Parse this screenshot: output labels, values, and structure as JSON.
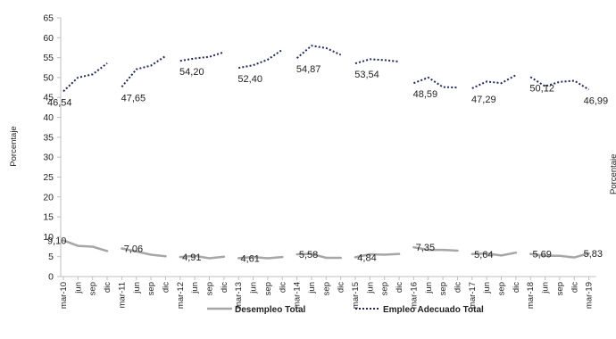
{
  "chart_data": {
    "type": "line",
    "ylabel": "Porcentaje",
    "ylabel_right": "Porcentaje",
    "ylim": [
      0,
      65
    ],
    "yticks": [
      0,
      5,
      10,
      15,
      20,
      25,
      30,
      35,
      40,
      45,
      50,
      55,
      60,
      65
    ],
    "categories": [
      "mar-10",
      "jun",
      "sep",
      "dic",
      "mar-11",
      "jun",
      "sep",
      "dic",
      "mar-12",
      "jun",
      "sep",
      "dic",
      "mar-13",
      "jun",
      "sep",
      "dic",
      "mar-14",
      "jun",
      "sep",
      "dic",
      "mar-15",
      "jun",
      "sep",
      "dic",
      "mar-16",
      "jun",
      "sep",
      "dic",
      "mar-17",
      "jun",
      "sep",
      "dic",
      "mar-18",
      "jun",
      "sep",
      "dic",
      "mar-19"
    ],
    "legend_position": "bottom",
    "series": [
      {
        "name": "Desempleo Total",
        "color": "#a6a6a6",
        "style": "solid",
        "values": [
          9.1,
          7.7,
          7.5,
          6.4,
          7.06,
          6.3,
          5.5,
          5.1,
          4.91,
          5.2,
          4.6,
          5.0,
          4.61,
          4.9,
          4.6,
          4.9,
          5.58,
          5.7,
          4.7,
          4.7,
          4.84,
          5.6,
          5.5,
          5.7,
          7.35,
          6.7,
          6.7,
          6.5,
          5.64,
          5.8,
          5.3,
          6.0,
          5.69,
          5.2,
          5.2,
          4.8,
          5.83
        ],
        "segments": [
          [
            0,
            3
          ],
          [
            4,
            7
          ],
          [
            8,
            11
          ],
          [
            12,
            15
          ],
          [
            16,
            19
          ],
          [
            20,
            23
          ],
          [
            24,
            27
          ],
          [
            28,
            31
          ],
          [
            32,
            36
          ]
        ]
      },
      {
        "name": "Empleo Adecuado Total",
        "color": "#1f2a5a",
        "style": "dotted",
        "values": [
          46.54,
          50.0,
          50.8,
          53.6,
          47.65,
          52.1,
          53.0,
          55.4,
          54.2,
          54.8,
          55.2,
          56.4,
          52.4,
          53.1,
          54.5,
          57.0,
          54.87,
          58.0,
          57.4,
          55.7,
          53.54,
          54.6,
          54.4,
          54.0,
          48.59,
          50.0,
          47.6,
          47.5,
          47.29,
          49.0,
          48.6,
          50.6,
          50.12,
          47.8,
          48.9,
          49.2,
          46.99
        ],
        "segments": [
          [
            0,
            3
          ],
          [
            4,
            7
          ],
          [
            8,
            11
          ],
          [
            12,
            15
          ],
          [
            16,
            19
          ],
          [
            20,
            23
          ],
          [
            24,
            27
          ],
          [
            28,
            31
          ],
          [
            32,
            36
          ]
        ]
      }
    ],
    "data_labels": [
      {
        "series": 0,
        "index": 0,
        "text": "9,10"
      },
      {
        "series": 0,
        "index": 4,
        "text": "7,06"
      },
      {
        "series": 0,
        "index": 8,
        "text": "4,91"
      },
      {
        "series": 0,
        "index": 12,
        "text": "4,61"
      },
      {
        "series": 0,
        "index": 16,
        "text": "5,58"
      },
      {
        "series": 0,
        "index": 20,
        "text": "4,84"
      },
      {
        "series": 0,
        "index": 24,
        "text": "7,35"
      },
      {
        "series": 0,
        "index": 28,
        "text": "5,64"
      },
      {
        "series": 0,
        "index": 32,
        "text": "5,69"
      },
      {
        "series": 0,
        "index": 36,
        "text": "5,83"
      },
      {
        "series": 1,
        "index": 0,
        "text": "46,54"
      },
      {
        "series": 1,
        "index": 4,
        "text": "47,65"
      },
      {
        "series": 1,
        "index": 8,
        "text": "54,20"
      },
      {
        "series": 1,
        "index": 12,
        "text": "52,40"
      },
      {
        "series": 1,
        "index": 16,
        "text": "54,87"
      },
      {
        "series": 1,
        "index": 20,
        "text": "53,54"
      },
      {
        "series": 1,
        "index": 24,
        "text": "48,59"
      },
      {
        "series": 1,
        "index": 28,
        "text": "47,29"
      },
      {
        "series": 1,
        "index": 32,
        "text": "50,12"
      },
      {
        "series": 1,
        "index": 36,
        "text": "46,99"
      }
    ]
  }
}
